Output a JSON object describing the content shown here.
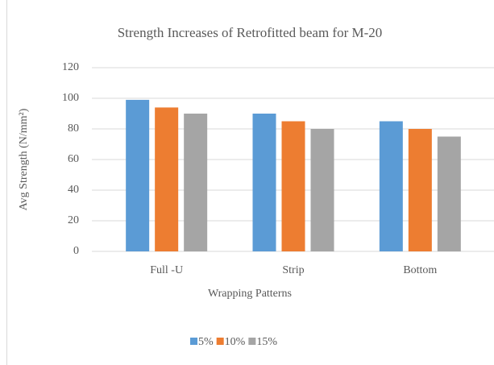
{
  "chart_data": {
    "type": "bar",
    "title": "Strength Increases of Retrofitted beam for M-20",
    "x_label": "Wrapping Patterns",
    "y_label": "Avg Strength (N/mm²)",
    "categories": [
      "Full -U",
      "Strip",
      "Bottom"
    ],
    "series": [
      {
        "name": "5%",
        "color": "#5b9bd5",
        "values": [
          99,
          90,
          85
        ]
      },
      {
        "name": "10%",
        "color": "#ed7d31",
        "values": [
          94,
          85,
          80
        ]
      },
      {
        "name": "15%",
        "color": "#a5a5a5",
        "values": [
          90,
          80,
          75
        ]
      }
    ],
    "ylim": [
      0,
      120
    ],
    "yticks": [
      0,
      20,
      40,
      60,
      80,
      100,
      120
    ],
    "grid": true,
    "legend": "bottom"
  }
}
